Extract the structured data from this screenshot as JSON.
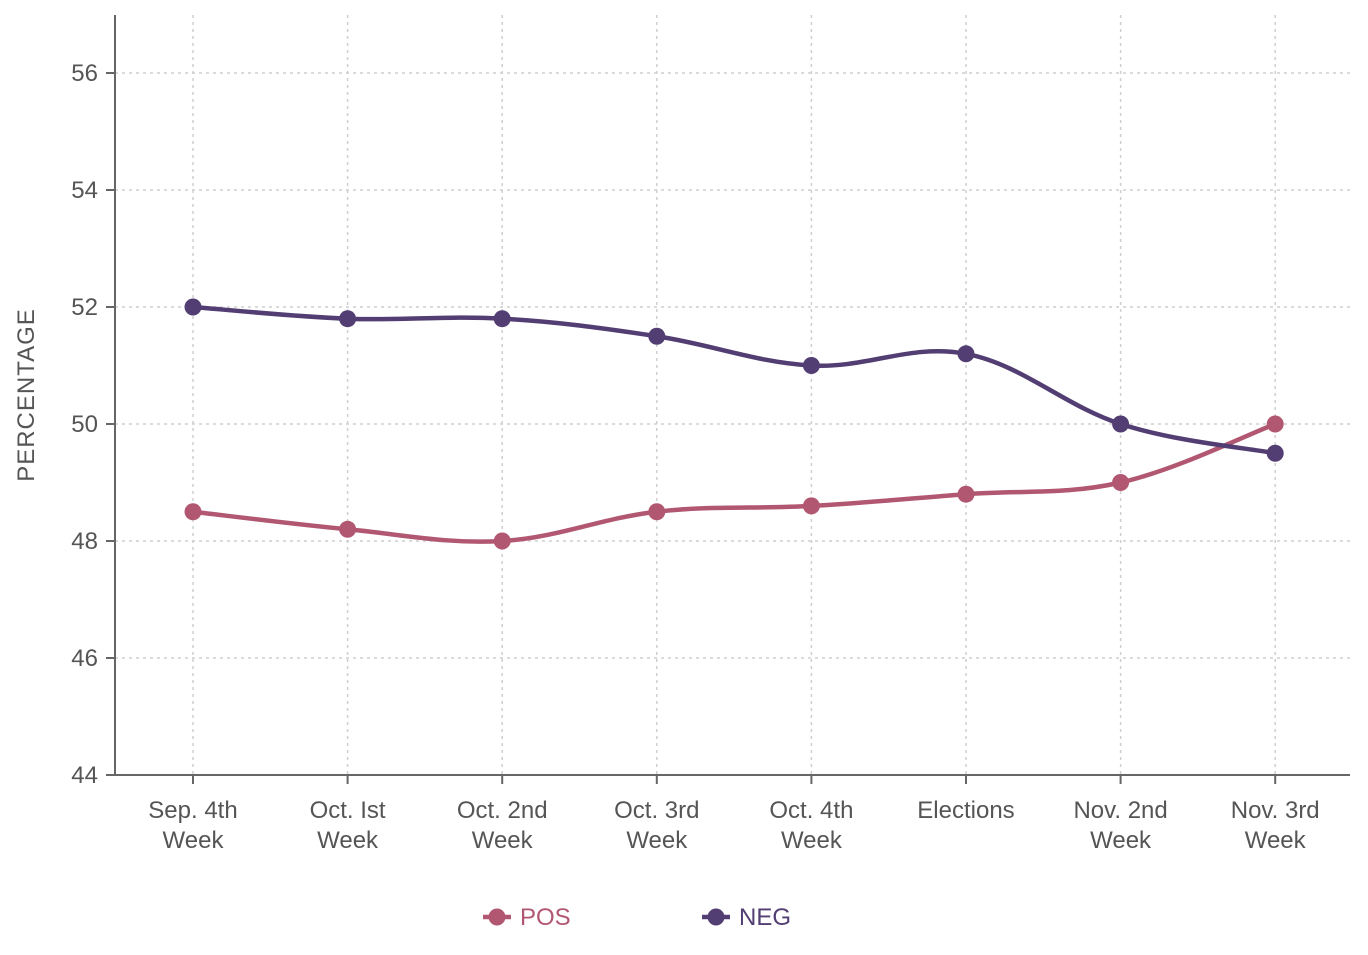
{
  "chart_data": {
    "type": "line",
    "title": "",
    "xlabel": "",
    "ylabel": "PERCENTAGE",
    "ylim": [
      44,
      57
    ],
    "yticks": [
      44,
      46,
      48,
      50,
      52,
      54,
      56
    ],
    "grid": true,
    "legend_position": "bottom-center",
    "categories": [
      [
        "Sep. 4th",
        "Week"
      ],
      [
        "Oct. Ist",
        "Week"
      ],
      [
        "Oct. 2nd",
        "Week"
      ],
      [
        "Oct. 3rd",
        "Week"
      ],
      [
        "Oct. 4th",
        "Week"
      ],
      [
        "Elections"
      ],
      [
        "Nov. 2nd",
        "Week"
      ],
      [
        "Nov. 3rd",
        "Week"
      ]
    ],
    "series": [
      {
        "name": "POS",
        "color": "#b25772",
        "values": [
          48.5,
          48.2,
          48.0,
          48.5,
          48.6,
          48.8,
          49.0,
          50.0
        ]
      },
      {
        "name": "NEG",
        "color": "#523e72",
        "values": [
          52.0,
          51.8,
          51.8,
          51.5,
          51.0,
          51.2,
          50.0,
          49.5
        ]
      }
    ]
  }
}
